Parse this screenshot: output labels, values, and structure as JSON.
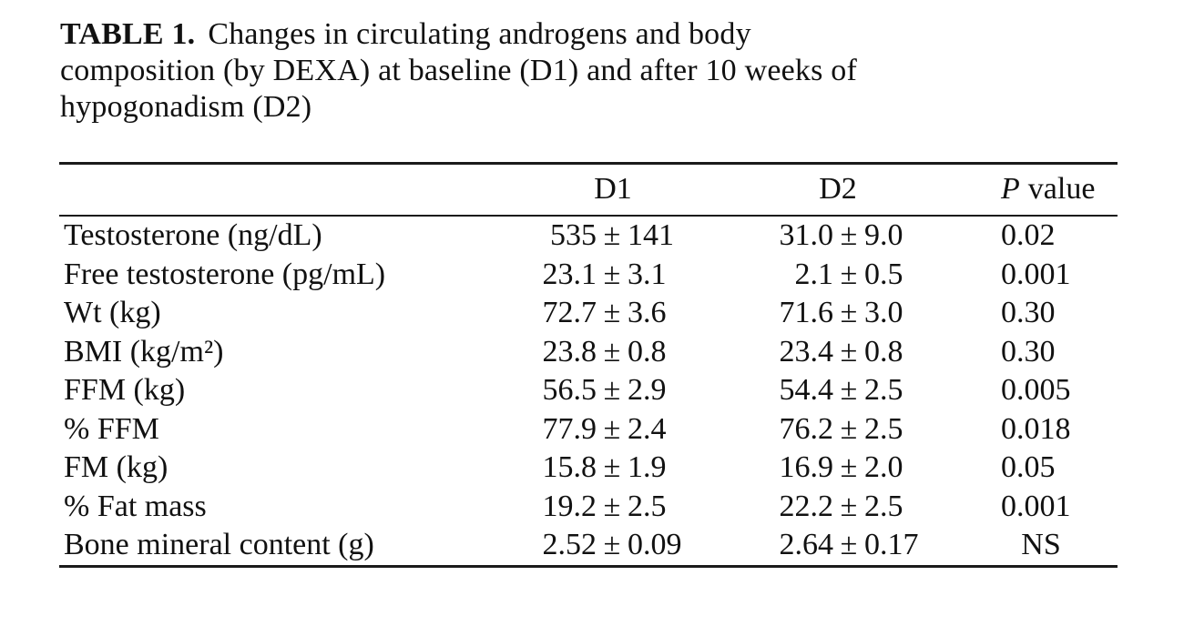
{
  "page": {
    "background": "#ffffff",
    "text_color": "#111111"
  },
  "caption": {
    "label_bold": "TABLE 1.",
    "line1_rest": "Changes in circulating androgens and body",
    "line2": "composition (by DEXA) at baseline (D1) and after 10 weeks of",
    "line3": "hypogonadism (D2)"
  },
  "symbols": {
    "plus_minus": "±"
  },
  "table": {
    "columns": {
      "d1": "D1",
      "d2": "D2",
      "p_italic": "P",
      "p_rest": "value"
    },
    "rows": [
      {
        "label": "Testosterone (ng/dL)",
        "d1_mean": "535",
        "d1_sd": "141",
        "d2_mean": "31.0",
        "d2_sd": "9.0",
        "p": "0.02"
      },
      {
        "label": "Free testosterone (pg/mL)",
        "d1_mean": "23.1",
        "d1_sd": "3.1",
        "d2_mean": "2.1",
        "d2_sd": "0.5",
        "p": "0.001"
      },
      {
        "label": "Wt (kg)",
        "d1_mean": "72.7",
        "d1_sd": "3.6",
        "d2_mean": "71.6",
        "d2_sd": "3.0",
        "p": "0.30"
      },
      {
        "label": "BMI (kg/m²)",
        "d1_mean": "23.8",
        "d1_sd": "0.8",
        "d2_mean": "23.4",
        "d2_sd": "0.8",
        "p": "0.30"
      },
      {
        "label": "FFM (kg)",
        "d1_mean": "56.5",
        "d1_sd": "2.9",
        "d2_mean": "54.4",
        "d2_sd": "2.5",
        "p": "0.005"
      },
      {
        "label": "% FFM",
        "d1_mean": "77.9",
        "d1_sd": "2.4",
        "d2_mean": "76.2",
        "d2_sd": "2.5",
        "p": "0.018"
      },
      {
        "label": "FM (kg)",
        "d1_mean": "15.8",
        "d1_sd": "1.9",
        "d2_mean": "16.9",
        "d2_sd": "2.0",
        "p": "0.05"
      },
      {
        "label": "% Fat mass",
        "d1_mean": "19.2",
        "d1_sd": "2.5",
        "d2_mean": "22.2",
        "d2_sd": "2.5",
        "p": "0.001"
      },
      {
        "label": "Bone mineral content (g)",
        "d1_mean": "2.52",
        "d1_sd": "0.09",
        "d2_mean": "2.64",
        "d2_sd": "0.17",
        "p": "NS"
      }
    ]
  }
}
